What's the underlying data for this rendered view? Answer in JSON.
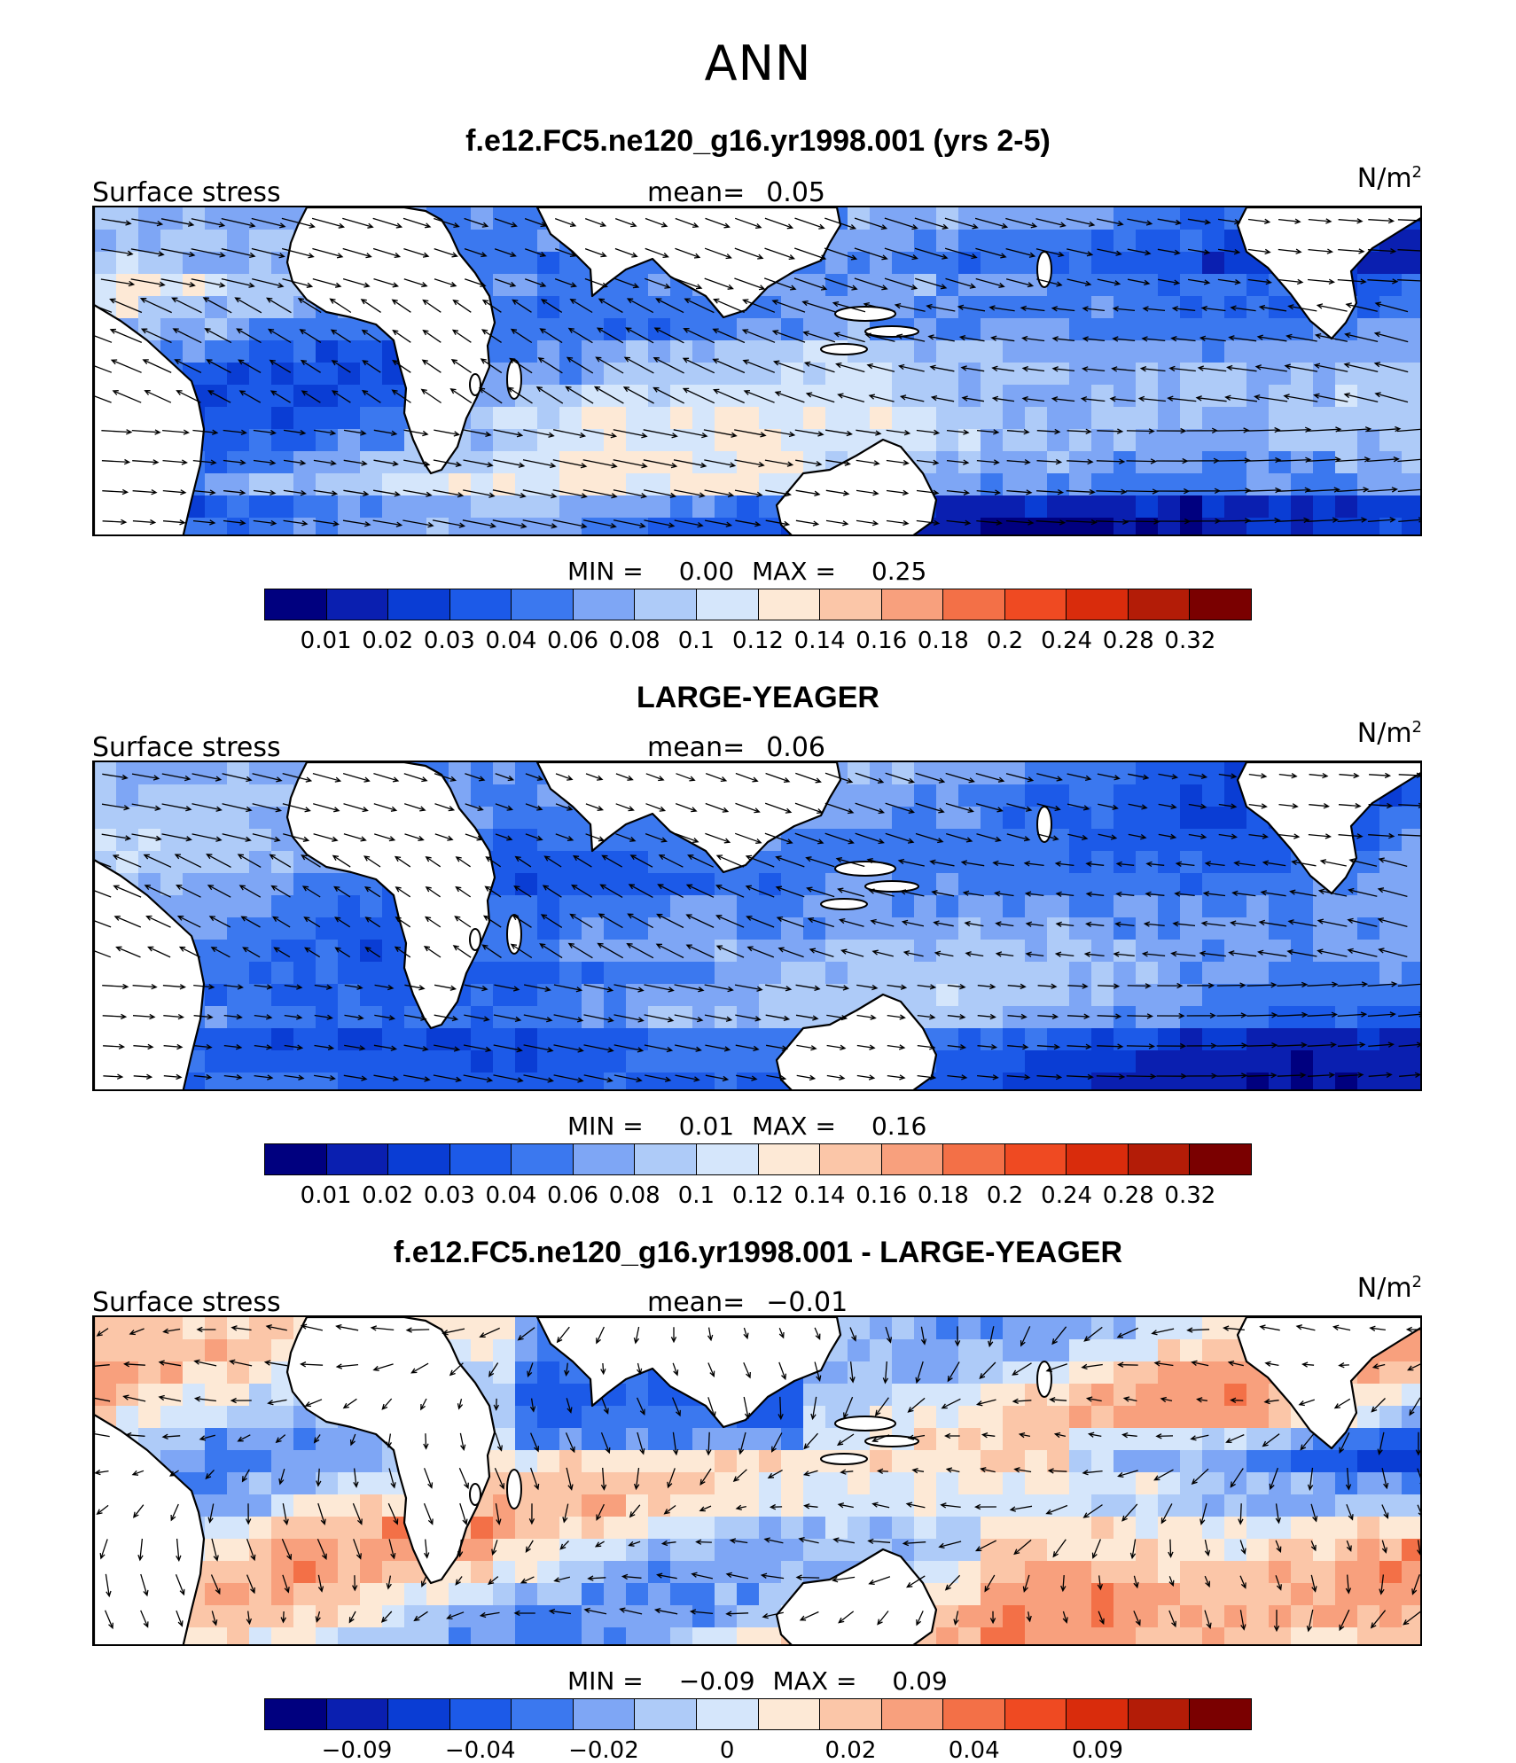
{
  "season": "ANN",
  "panels": [
    {
      "title": "f.e12.FC5.ne120_g16.yr1998.001 (yrs 2-5)",
      "variable": "Surface stress",
      "mean_label": "mean=",
      "mean_value": "0.05",
      "units_base": "N/m",
      "units_exp": "2",
      "min_label": "MIN =",
      "min_value": "0.00",
      "max_label": "MAX =",
      "max_value": "0.25",
      "tick_labels": [
        "0.01",
        "0.02",
        "0.03",
        "0.04",
        "0.06",
        "0.08",
        "0.1",
        "0.12",
        "0.14",
        "0.16",
        "0.18",
        "0.2",
        "0.24",
        "0.28",
        "0.32"
      ],
      "map_kind": "model"
    },
    {
      "title": "LARGE-YEAGER",
      "variable": "Surface stress",
      "mean_label": "mean=",
      "mean_value": "0.06",
      "units_base": "N/m",
      "units_exp": "2",
      "min_label": "MIN =",
      "min_value": "0.01",
      "max_label": "MAX =",
      "max_value": "0.16",
      "tick_labels": [
        "0.01",
        "0.02",
        "0.03",
        "0.04",
        "0.06",
        "0.08",
        "0.1",
        "0.12",
        "0.14",
        "0.16",
        "0.18",
        "0.2",
        "0.24",
        "0.28",
        "0.32"
      ],
      "map_kind": "obs"
    },
    {
      "title": "f.e12.FC5.ne120_g16.yr1998.001 - LARGE-YEAGER",
      "variable": "Surface stress",
      "mean_label": "mean=",
      "mean_value": "−0.01",
      "units_base": "N/m",
      "units_exp": "2",
      "min_label": "MIN =",
      "min_value": "−0.09",
      "max_label": "MAX =",
      "max_value": "0.09",
      "tick_labels": [
        "−0.09",
        "",
        "−0.04",
        "",
        "−0.02",
        "",
        "0",
        "",
        "0.02",
        "",
        "0.04",
        "",
        "0.09"
      ],
      "map_kind": "diff"
    }
  ],
  "chart_data": {
    "type": "heatmap",
    "title": "ANN",
    "colorbar_colors": [
      "#00007f",
      "#0a1fb0",
      "#0a3dd4",
      "#1c5ae8",
      "#3b78ef",
      "#7ea6f5",
      "#aecbf8",
      "#d5e6fb",
      "#fde9d6",
      "#fbc6a8",
      "#f8a07d",
      "#f37047",
      "#ef4a22",
      "#d92c0c",
      "#b31c07",
      "#7a0000"
    ],
    "series": [
      {
        "name": "f.e12.FC5.ne120_g16.yr1998.001 (yrs 2-5)",
        "mean": 0.05,
        "min": 0.0,
        "max": 0.25,
        "levels": [
          0.01,
          0.02,
          0.03,
          0.04,
          0.06,
          0.08,
          0.1,
          0.12,
          0.14,
          0.16,
          0.18,
          0.2,
          0.24,
          0.28,
          0.32
        ]
      },
      {
        "name": "LARGE-YEAGER",
        "mean": 0.06,
        "min": 0.01,
        "max": 0.16,
        "levels": [
          0.01,
          0.02,
          0.03,
          0.04,
          0.06,
          0.08,
          0.1,
          0.12,
          0.14,
          0.16,
          0.18,
          0.2,
          0.24,
          0.28,
          0.32
        ]
      },
      {
        "name": "f.e12.FC5.ne120_g16.yr1998.001 - LARGE-YEAGER",
        "mean": -0.01,
        "min": -0.09,
        "max": 0.09,
        "levels": [
          -0.09,
          -0.04,
          -0.02,
          0,
          0.02,
          0.04,
          0.09
        ]
      }
    ],
    "xlabel": "",
    "ylabel": "",
    "units": "N/m2"
  }
}
